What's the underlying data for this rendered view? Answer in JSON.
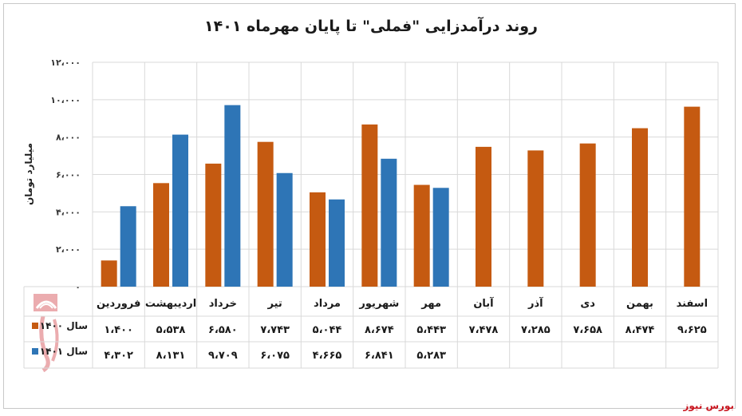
{
  "chart_data": {
    "type": "bar",
    "title": "روند درآمدزایی \"فملی\" تا پایان مهرماه ۱۴۰۱",
    "ylabel": "میلیارد تومان",
    "xlabel": "",
    "ylim": [
      0,
      12000
    ],
    "yticks": [
      0,
      2000,
      4000,
      6000,
      8000,
      10000,
      12000
    ],
    "ytick_labels": [
      "۰",
      "۲،۰۰۰",
      "۴،۰۰۰",
      "۶،۰۰۰",
      "۸،۰۰۰",
      "۱۰،۰۰۰",
      "۱۲،۰۰۰"
    ],
    "categories": [
      "فروردین",
      "اردیبهشت",
      "خرداد",
      "تیر",
      "مرداد",
      "شهریور",
      "مهر",
      "آبان",
      "آذر",
      "دی",
      "بهمن",
      "اسفند"
    ],
    "series": [
      {
        "name": "سال ۱۴۰۰",
        "color": "#c55a11",
        "values": [
          1400,
          5538,
          6580,
          7743,
          5044,
          8674,
          5443,
          7478,
          7285,
          7658,
          8474,
          9625
        ],
        "labels": [
          "۱،۴۰۰",
          "۵،۵۳۸",
          "۶،۵۸۰",
          "۷،۷۴۳",
          "۵،۰۴۴",
          "۸،۶۷۴",
          "۵،۴۴۳",
          "۷،۴۷۸",
          "۷،۲۸۵",
          "۷،۶۵۸",
          "۸،۴۷۴",
          "۹،۶۲۵"
        ]
      },
      {
        "name": "سال ۱۴۰۱",
        "color": "#2e75b6",
        "values": [
          4302,
          8131,
          9709,
          6075,
          4665,
          6841,
          5283,
          null,
          null,
          null,
          null,
          null
        ],
        "labels": [
          "۴،۳۰۲",
          "۸،۱۳۱",
          "۹،۷۰۹",
          "۶،۰۷۵",
          "۴،۶۶۵",
          "۶،۸۴۱",
          "۵،۲۸۳",
          "",
          "",
          "",
          "",
          ""
        ]
      }
    ],
    "grid": true,
    "legend": "data-table-left"
  },
  "source_label": "بورس نیوز",
  "logo_text": "بورس نیوز"
}
